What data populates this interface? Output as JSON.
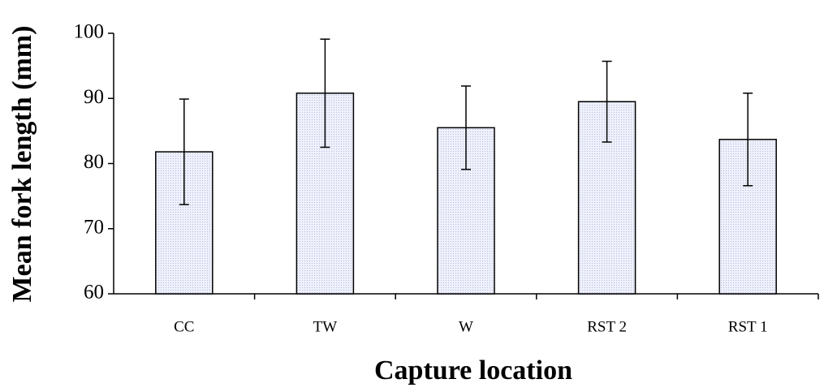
{
  "chart_data": {
    "type": "bar",
    "x_label": "Capture location",
    "y_label": "Mean fork length (mm)",
    "categories": [
      "CC",
      "TW",
      "W",
      "RST 2",
      "RST 1"
    ],
    "values": [
      81.8,
      90.8,
      85.5,
      89.5,
      83.7
    ],
    "errors": [
      8.1,
      8.3,
      6.4,
      6.2,
      7.1
    ],
    "color": "#e6e8f7",
    "ylim": [
      60,
      100
    ],
    "yticks": [
      60,
      70,
      80,
      90,
      100
    ],
    "grid": false
  }
}
